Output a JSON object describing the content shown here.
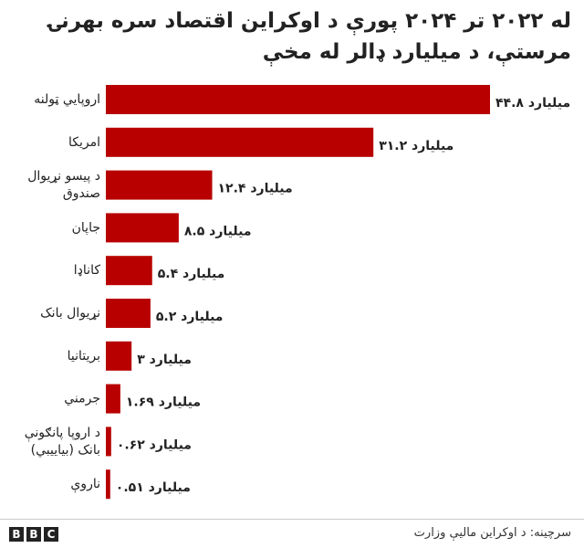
{
  "title": "له ۲۰۲۲ تر ۲۰۲۴ پورې د اوکراین اقتصاد سره بهرنۍ مرستې، د میلیارد ډالر له مخې",
  "source": "سرچینه: د اوکراین مالیې وزارت",
  "logo": [
    "B",
    "B",
    "C"
  ],
  "colors": {
    "bar": "#b80000",
    "text": "#222222"
  },
  "chart_data": {
    "type": "bar",
    "orientation": "horizontal",
    "title": "له ۲۰۲۲ تر ۲۰۲۴ پورې د اوکراین اقتصاد سره بهرنۍ مرستې، د میلیارد ډالر له مخې",
    "unit": "میلیارد",
    "categories": [
      [
        "اروپايي ټولنه"
      ],
      [
        "امریکا"
      ],
      [
        "د پیسو نړیوال",
        "صندوق"
      ],
      [
        "جاپان"
      ],
      [
        "کاناډا"
      ],
      [
        "نړیوال بانک"
      ],
      [
        "بریتانیا"
      ],
      [
        "جرمني"
      ],
      [
        "د اروپا پانګونې",
        "بانک (بیاییبي)"
      ],
      [
        "ناروې"
      ]
    ],
    "values": [
      44.8,
      31.2,
      12.4,
      8.5,
      5.4,
      5.2,
      3,
      1.69,
      0.62,
      0.51
    ],
    "value_labels": [
      "۴۴.۸",
      "۳۱.۲",
      "۱۲.۴",
      "۸.۵",
      "۵.۴",
      "۵.۲",
      "۳",
      "۱.۶۹",
      "۰.۶۲",
      "۰.۵۱"
    ],
    "xlim": [
      0,
      44.8
    ],
    "grid": false,
    "legend": false
  }
}
